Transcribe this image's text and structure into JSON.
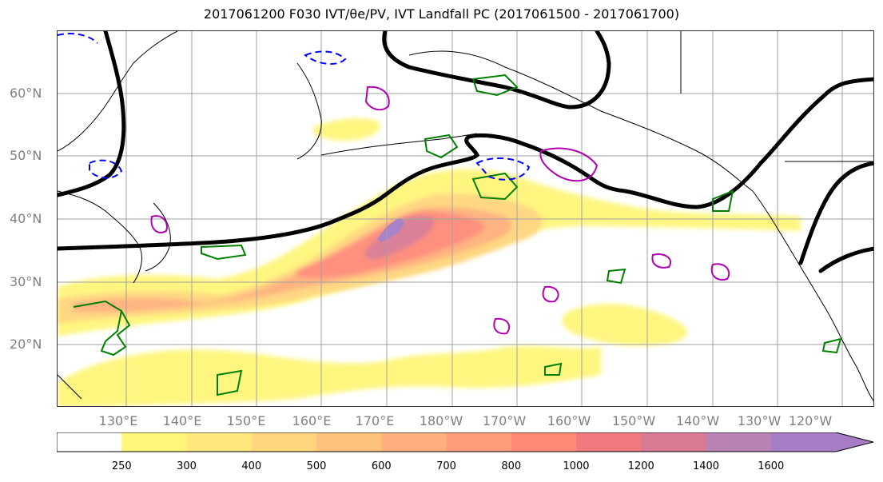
{
  "title": "2017061200 F030 IVT/θe/PV, IVT Landfall PC (2017061500 - 2017061700)",
  "lat_labels": [
    "60°N",
    "50°N",
    "40°N",
    "30°N",
    "20°N"
  ],
  "lon_labels": [
    "130°E",
    "140°E",
    "150°E",
    "160°E",
    "170°E",
    "180°W",
    "170°W",
    "160°W",
    "150°W",
    "140°W",
    "130°W",
    "120°W"
  ],
  "colorbar": {
    "ticks": [
      "250",
      "300",
      "400",
      "500",
      "600",
      "700",
      "800",
      "1000",
      "1200",
      "1400",
      "1600"
    ],
    "colors": [
      "#ffffff",
      "#fff67a",
      "#ffe77c",
      "#ffd57d",
      "#ffc27c",
      "#ffb07c",
      "#ff9c7a",
      "#ff8a78",
      "#f07a7e",
      "#d97a93",
      "#b882b2",
      "#a67cc4"
    ],
    "extend": "max"
  },
  "contour_colors": {
    "ivt_fill_low": "#fff67a",
    "ivt_fill_high": "#a67cc4",
    "landfall_pc": "#000000",
    "theta_e": "#008000",
    "pv_positive": "#b000b0",
    "pv_negative": "#0000ff"
  }
}
